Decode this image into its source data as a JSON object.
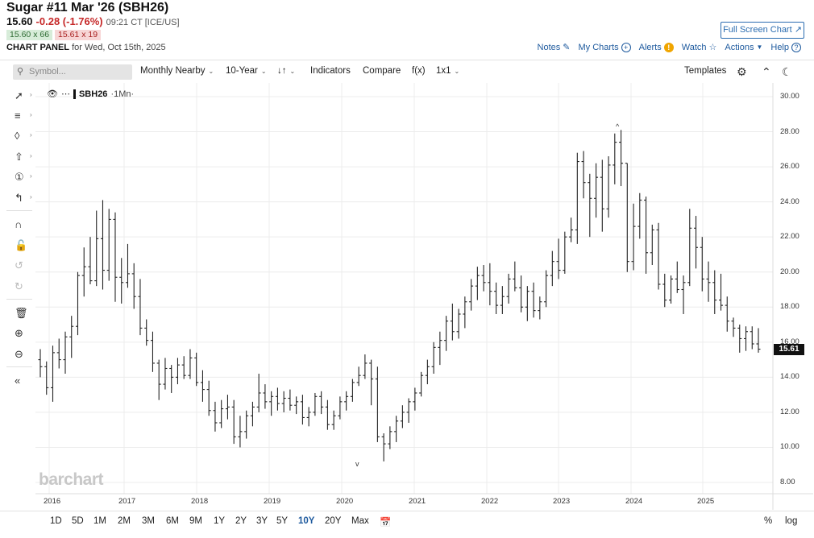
{
  "header": {
    "title": "Sugar #11 Mar '26 (SBH26)",
    "last": "15.60",
    "change": "-0.28 (-1.76%)",
    "time": "09:21 CT [ICE/US]",
    "bid": "15.60 x 66",
    "ask": "15.61 x 19",
    "panel_label": "CHART PANEL",
    "panel_date": "for Wed, Oct 15th, 2025",
    "fullscreen_label": "Full Screen Chart"
  },
  "toplinks": {
    "notes": "Notes",
    "mycharts": "My Charts",
    "alerts": "Alerts",
    "watch": "Watch",
    "actions": "Actions",
    "help": "Help"
  },
  "toolbar": {
    "symbol_placeholder": "Symbol...",
    "period": "Monthly Nearby",
    "range": "10-Year",
    "indicators": "Indicators",
    "compare": "Compare",
    "fx": "f(x)",
    "layout": "1x1",
    "templates": "Templates"
  },
  "legend": {
    "symbol": "SBH26",
    "period": "·1Mn·"
  },
  "ranges": [
    "1D",
    "5D",
    "1M",
    "2M",
    "3M",
    "6M",
    "9M",
    "1Y",
    "2Y",
    "3Y",
    "5Y",
    "10Y",
    "20Y",
    "Max"
  ],
  "active_range": "10Y",
  "scale_options": {
    "percent": "%",
    "log": "log"
  },
  "watermark": "barchart",
  "last_price_tag": "15.61",
  "colors": {
    "accent": "#1e5a9e",
    "down": "#c62828",
    "bar": "#222222"
  },
  "chart_data": {
    "type": "ohlc",
    "y_axis": {
      "min": 8,
      "max": 30,
      "ticks": [
        "30.00",
        "28.00",
        "26.00",
        "24.00",
        "22.00",
        "20.00",
        "18.00",
        "16.00",
        "14.00",
        "12.00",
        "10.00",
        "8.00"
      ]
    },
    "x_axis": {
      "ticks": [
        "2016",
        "2017",
        "2018",
        "2019",
        "2020",
        "2021",
        "2022",
        "2023",
        "2024",
        "2025"
      ]
    },
    "bars": [
      [
        15.0,
        15.6,
        14.0,
        14.6
      ],
      [
        14.6,
        14.9,
        13.0,
        13.4
      ],
      [
        13.4,
        15.8,
        12.6,
        15.4
      ],
      [
        15.4,
        16.2,
        14.5,
        15.0
      ],
      [
        15.0,
        16.6,
        14.2,
        16.3
      ],
      [
        16.3,
        17.5,
        15.1,
        16.9
      ],
      [
        16.9,
        20.0,
        16.4,
        19.8
      ],
      [
        19.8,
        21.4,
        18.6,
        20.3
      ],
      [
        20.3,
        22.0,
        19.3,
        19.5
      ],
      [
        19.5,
        23.5,
        19.2,
        21.9
      ],
      [
        21.9,
        24.1,
        19.0,
        20.1
      ],
      [
        20.1,
        23.6,
        19.5,
        23.0
      ],
      [
        23.0,
        23.4,
        18.3,
        19.7
      ],
      [
        19.7,
        20.8,
        18.2,
        19.4
      ],
      [
        19.4,
        21.6,
        19.1,
        19.9
      ],
      [
        19.9,
        20.5,
        17.9,
        18.6
      ],
      [
        18.6,
        19.6,
        16.4,
        16.8
      ],
      [
        16.8,
        17.3,
        15.8,
        16.1
      ],
      [
        16.1,
        16.6,
        14.3,
        14.8
      ],
      [
        14.8,
        15.0,
        12.7,
        13.6
      ],
      [
        13.6,
        15.1,
        13.3,
        14.5
      ],
      [
        14.5,
        14.7,
        13.1,
        14.0
      ],
      [
        14.0,
        15.1,
        13.6,
        14.7
      ],
      [
        14.7,
        15.2,
        13.9,
        14.1
      ],
      [
        14.1,
        15.6,
        13.9,
        15.1
      ],
      [
        15.1,
        15.4,
        13.5,
        13.7
      ],
      [
        13.7,
        14.4,
        12.6,
        13.3
      ],
      [
        13.3,
        13.8,
        11.8,
        12.1
      ],
      [
        12.1,
        12.6,
        10.9,
        11.4
      ],
      [
        11.4,
        12.7,
        11.1,
        12.2
      ],
      [
        12.2,
        13.0,
        11.6,
        12.3
      ],
      [
        12.3,
        12.7,
        10.2,
        10.6
      ],
      [
        10.6,
        11.8,
        10.0,
        10.9
      ],
      [
        10.9,
        12.1,
        10.5,
        11.8
      ],
      [
        11.8,
        12.6,
        11.2,
        12.3
      ],
      [
        12.3,
        14.2,
        12.0,
        13.1
      ],
      [
        13.1,
        13.6,
        12.2,
        12.6
      ],
      [
        12.6,
        13.2,
        11.8,
        12.9
      ],
      [
        12.9,
        13.4,
        12.1,
        12.5
      ],
      [
        12.5,
        13.2,
        12.0,
        12.8
      ],
      [
        12.8,
        13.3,
        12.1,
        12.4
      ],
      [
        12.4,
        12.9,
        11.9,
        12.6
      ],
      [
        12.6,
        13.0,
        11.3,
        11.7
      ],
      [
        11.7,
        12.3,
        11.2,
        12.0
      ],
      [
        12.0,
        13.1,
        11.8,
        12.9
      ],
      [
        12.9,
        13.2,
        11.9,
        12.3
      ],
      [
        12.3,
        12.7,
        11.0,
        11.3
      ],
      [
        11.3,
        12.1,
        11.0,
        11.8
      ],
      [
        11.8,
        12.9,
        11.6,
        12.6
      ],
      [
        12.6,
        13.2,
        12.1,
        12.9
      ],
      [
        12.9,
        13.9,
        12.6,
        13.7
      ],
      [
        13.7,
        14.6,
        13.5,
        14.1
      ],
      [
        14.1,
        15.3,
        13.9,
        14.8
      ],
      [
        14.8,
        15.0,
        12.4,
        13.9
      ],
      [
        13.9,
        14.6,
        10.3,
        10.6
      ],
      [
        10.6,
        10.8,
        9.2,
        10.2
      ],
      [
        10.2,
        11.2,
        9.9,
        10.9
      ],
      [
        10.9,
        11.8,
        10.3,
        11.5
      ],
      [
        11.5,
        12.4,
        11.1,
        12.0
      ],
      [
        12.0,
        12.8,
        11.4,
        12.6
      ],
      [
        12.6,
        13.4,
        12.1,
        13.1
      ],
      [
        13.1,
        14.3,
        12.9,
        14.1
      ],
      [
        14.1,
        15.0,
        13.6,
        14.6
      ],
      [
        14.6,
        16.0,
        14.2,
        15.7
      ],
      [
        15.7,
        16.6,
        14.7,
        16.1
      ],
      [
        16.1,
        17.5,
        15.5,
        17.2
      ],
      [
        17.2,
        18.2,
        16.1,
        16.6
      ],
      [
        16.6,
        17.9,
        16.2,
        17.6
      ],
      [
        17.6,
        18.6,
        16.8,
        18.3
      ],
      [
        18.3,
        19.6,
        17.8,
        19.2
      ],
      [
        19.2,
        20.3,
        18.4,
        19.8
      ],
      [
        19.8,
        20.4,
        18.9,
        19.4
      ],
      [
        19.4,
        20.5,
        18.1,
        18.9
      ],
      [
        18.9,
        19.4,
        17.6,
        18.1
      ],
      [
        18.1,
        19.2,
        17.6,
        18.6
      ],
      [
        18.6,
        19.9,
        18.2,
        19.6
      ],
      [
        19.6,
        20.6,
        18.9,
        19.1
      ],
      [
        19.1,
        19.8,
        17.7,
        18.0
      ],
      [
        18.0,
        19.2,
        17.2,
        18.9
      ],
      [
        18.9,
        19.4,
        17.4,
        17.8
      ],
      [
        17.8,
        18.6,
        17.3,
        18.3
      ],
      [
        18.3,
        20.1,
        18.0,
        19.8
      ],
      [
        19.8,
        21.2,
        19.2,
        20.6
      ],
      [
        20.6,
        21.9,
        19.6,
        20.1
      ],
      [
        20.1,
        22.3,
        19.9,
        22.0
      ],
      [
        22.0,
        23.1,
        21.7,
        22.4
      ],
      [
        22.4,
        26.8,
        21.6,
        26.3
      ],
      [
        26.3,
        26.9,
        24.2,
        25.1
      ],
      [
        25.1,
        25.6,
        22.0,
        24.2
      ],
      [
        24.2,
        26.2,
        23.1,
        25.4
      ],
      [
        25.4,
        26.4,
        22.3,
        23.6
      ],
      [
        23.6,
        26.6,
        23.1,
        26.1
      ],
      [
        26.1,
        27.9,
        25.0,
        27.4
      ],
      [
        27.4,
        28.1,
        24.9,
        26.2
      ],
      [
        26.2,
        26.2,
        20.0,
        20.6
      ],
      [
        20.6,
        23.9,
        20.1,
        22.6
      ],
      [
        22.6,
        24.5,
        21.9,
        24.1
      ],
      [
        24.1,
        24.3,
        19.9,
        21.1
      ],
      [
        21.1,
        22.7,
        20.4,
        22.4
      ],
      [
        22.4,
        22.8,
        19.0,
        19.3
      ],
      [
        19.3,
        19.9,
        18.0,
        18.4
      ],
      [
        18.4,
        19.8,
        18.2,
        19.6
      ],
      [
        19.6,
        20.6,
        18.8,
        19.0
      ],
      [
        19.0,
        19.8,
        17.6,
        19.4
      ],
      [
        19.4,
        23.6,
        19.2,
        22.5
      ],
      [
        22.5,
        23.2,
        20.2,
        21.4
      ],
      [
        21.4,
        22.0,
        18.9,
        19.6
      ],
      [
        19.6,
        20.6,
        18.3,
        19.4
      ],
      [
        19.4,
        20.1,
        17.6,
        18.4
      ],
      [
        18.4,
        19.9,
        17.8,
        18.1
      ],
      [
        18.1,
        18.6,
        16.6,
        17.2
      ],
      [
        17.2,
        17.4,
        16.3,
        16.8
      ],
      [
        16.8,
        17.0,
        15.4,
        16.2
      ],
      [
        16.2,
        16.9,
        15.5,
        16.6
      ],
      [
        16.6,
        16.9,
        15.6,
        15.9
      ],
      [
        15.9,
        16.8,
        15.4,
        15.6
      ]
    ]
  }
}
